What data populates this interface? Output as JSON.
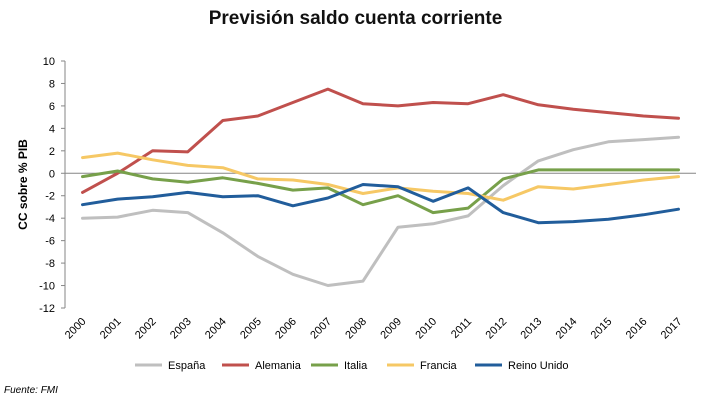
{
  "chart_data": {
    "type": "line",
    "title": "Previsión saldo cuenta corriente",
    "xlabel": "",
    "ylabel": "CC sobre % PIB",
    "ylim": [
      -12,
      10
    ],
    "yticks": [
      10,
      8,
      6,
      4,
      2,
      0,
      -2,
      -4,
      -6,
      -8,
      -10,
      -12
    ],
    "grid": false,
    "legend_position": "bottom",
    "categories": [
      "2000",
      "2001",
      "2002",
      "2003",
      "2004",
      "2005",
      "2006",
      "2007",
      "2008",
      "2009",
      "2010",
      "2011",
      "2012",
      "2013",
      "2014",
      "2015",
      "2016",
      "2017"
    ],
    "series": [
      {
        "name": "España",
        "color": "#bfbfbf",
        "values": [
          -4.0,
          -3.9,
          -3.3,
          -3.5,
          -5.3,
          -7.4,
          -9.0,
          -10.0,
          -9.6,
          -4.8,
          -4.5,
          -3.8,
          -1.1,
          1.1,
          2.1,
          2.8,
          3.0,
          3.2
        ]
      },
      {
        "name": "Alemania",
        "color": "#c0504d",
        "values": [
          -1.7,
          0.0,
          2.0,
          1.9,
          4.7,
          5.1,
          6.3,
          7.5,
          6.2,
          6.0,
          6.3,
          6.2,
          7.0,
          6.1,
          5.7,
          5.4,
          5.1,
          4.9
        ]
      },
      {
        "name": "Italia",
        "color": "#77a04a",
        "values": [
          -0.3,
          0.2,
          -0.5,
          -0.8,
          -0.4,
          -0.9,
          -1.5,
          -1.3,
          -2.8,
          -2.0,
          -3.5,
          -3.1,
          -0.5,
          0.3,
          0.3,
          0.3,
          0.3,
          0.3
        ]
      },
      {
        "name": "Francia",
        "color": "#f6c865",
        "values": [
          1.4,
          1.8,
          1.2,
          0.7,
          0.5,
          -0.5,
          -0.6,
          -1.0,
          -1.8,
          -1.3,
          -1.6,
          -1.8,
          -2.4,
          -1.2,
          -1.4,
          -1.0,
          -0.6,
          -0.3
        ]
      },
      {
        "name": "Reino Unido",
        "color": "#215d9b",
        "values": [
          -2.8,
          -2.3,
          -2.1,
          -1.7,
          -2.1,
          -2.0,
          -2.9,
          -2.2,
          -1.0,
          -1.2,
          -2.5,
          -1.3,
          -3.5,
          -4.4,
          -4.3,
          -4.1,
          -3.7,
          -3.2
        ]
      }
    ]
  },
  "source_note": "Fuente: FMI"
}
